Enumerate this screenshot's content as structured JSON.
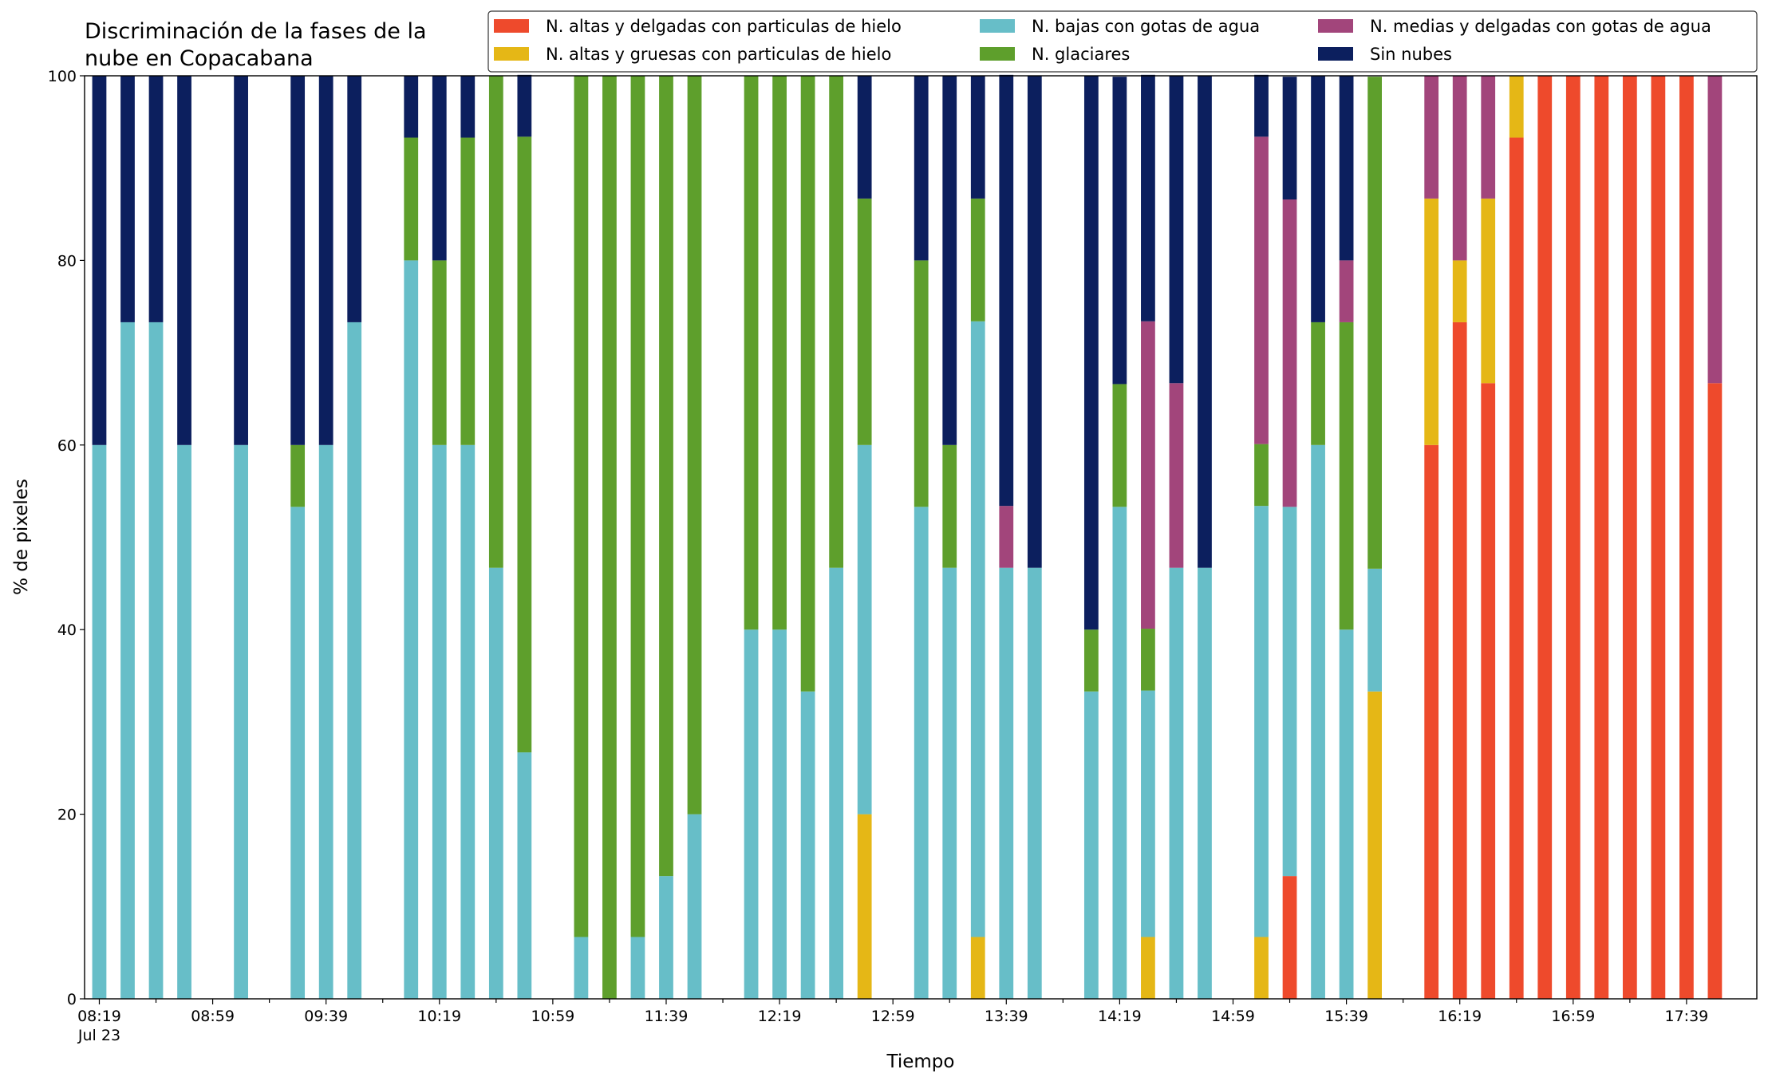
{
  "chart_data": {
    "type": "stacked_bar",
    "title": [
      "Discriminación de la fases de la",
      "nube en Copacabana"
    ],
    "x_label": "Tiempo",
    "y_label": "% de pixeles",
    "date_label": "Jul 23",
    "categories": [
      "08:19",
      null,
      null,
      null,
      "08:59",
      null,
      null,
      null,
      "09:39",
      null,
      null,
      null,
      "10:19",
      null,
      null,
      null,
      "10:59",
      null,
      null,
      null,
      "11:39",
      null,
      null,
      null,
      "12:19",
      null,
      null,
      null,
      "12:59",
      null,
      null,
      null,
      "13:39",
      null,
      null,
      null,
      "14:19",
      null,
      null,
      null,
      "14:59",
      null,
      null,
      null,
      "15:39",
      null,
      null,
      null,
      "16:19",
      null,
      null,
      null,
      "16:59",
      null,
      null,
      null,
      "17:39",
      null
    ],
    "series": [
      {
        "name": "N. altas y delgadas con particulas de hielo",
        "color": "#ee4a2c",
        "values": [
          0,
          0,
          0,
          0,
          null,
          0,
          null,
          0,
          0,
          0,
          null,
          0,
          0,
          0,
          0,
          0,
          null,
          0,
          0,
          0,
          0,
          0,
          null,
          0,
          0,
          0,
          0,
          0,
          null,
          0,
          0,
          0,
          0,
          0,
          null,
          0,
          0,
          0,
          0,
          0,
          null,
          0,
          13.3,
          0,
          0,
          0,
          null,
          60,
          73.3,
          66.7,
          93.3,
          100,
          100,
          100,
          100,
          100,
          100,
          66.7
        ]
      },
      {
        "name": "N. altas y gruesas con particulas de hielo",
        "color": "#e5b716",
        "values": [
          0,
          0,
          0,
          0,
          null,
          0,
          null,
          0,
          0,
          0,
          null,
          0,
          0,
          0,
          0,
          0,
          null,
          0,
          0,
          0,
          0,
          0,
          null,
          0,
          0,
          0,
          0,
          20,
          null,
          0,
          0,
          6.7,
          0,
          0,
          null,
          0,
          0,
          6.7,
          0,
          0,
          null,
          6.7,
          0,
          0,
          0,
          33.3,
          null,
          26.7,
          6.7,
          20,
          6.7,
          0,
          0,
          0,
          0,
          0,
          0,
          0
        ]
      },
      {
        "name": "N. bajas con gotas de agua",
        "color": "#67bec8",
        "values": [
          60,
          73.3,
          73.3,
          60,
          null,
          60,
          null,
          53.3,
          60,
          73.3,
          null,
          80,
          60,
          60,
          46.7,
          26.7,
          null,
          6.7,
          0,
          6.7,
          13.3,
          20,
          null,
          40,
          40,
          33.3,
          46.7,
          40,
          null,
          53.3,
          46.7,
          66.7,
          46.7,
          46.7,
          null,
          33.3,
          53.3,
          26.7,
          46.7,
          46.7,
          null,
          46.7,
          40,
          60,
          40,
          13.3,
          null,
          0,
          0,
          0,
          0,
          0,
          0,
          0,
          0,
          0,
          0,
          0
        ]
      },
      {
        "name": "N. glaciares",
        "color": "#5e9f2c",
        "values": [
          0,
          0,
          0,
          0,
          null,
          0,
          null,
          6.7,
          0,
          0,
          null,
          13.3,
          20,
          33.3,
          53.3,
          66.7,
          null,
          93.3,
          100,
          93.3,
          86.7,
          80,
          null,
          60,
          60,
          66.7,
          53.3,
          26.7,
          null,
          26.7,
          13.3,
          13.3,
          0,
          0,
          null,
          6.7,
          13.3,
          6.7,
          0,
          0,
          null,
          6.7,
          0,
          13.3,
          33.3,
          53.3,
          null,
          0,
          0,
          0,
          0,
          0,
          0,
          0,
          0,
          0,
          0,
          0
        ]
      },
      {
        "name": "N. medias y delgadas con gotas de agua",
        "color": "#a2457b",
        "values": [
          0,
          0,
          0,
          0,
          null,
          0,
          null,
          0,
          0,
          0,
          null,
          0,
          0,
          0,
          0,
          0,
          null,
          0,
          0,
          0,
          0,
          0,
          null,
          0,
          0,
          0,
          0,
          0,
          null,
          0,
          0,
          0,
          6.7,
          0,
          null,
          0,
          0,
          33.3,
          20,
          0,
          null,
          33.3,
          33.3,
          0,
          6.7,
          0,
          null,
          13.3,
          20,
          13.3,
          0,
          0,
          0,
          0,
          0,
          0,
          0,
          33.3
        ]
      },
      {
        "name": "Sin nubes",
        "color": "#0c1f5e",
        "values": [
          40,
          26.7,
          26.7,
          40,
          null,
          40,
          null,
          40,
          40,
          26.7,
          null,
          6.7,
          20,
          6.7,
          0,
          6.7,
          null,
          0,
          0,
          0,
          0,
          0,
          null,
          0,
          0,
          0,
          0,
          13.3,
          null,
          20,
          40,
          13.3,
          46.7,
          53.3,
          null,
          60,
          33.3,
          26.7,
          33.3,
          53.3,
          null,
          6.7,
          13.3,
          26.7,
          20,
          0,
          null,
          0,
          0,
          0,
          0,
          0,
          0,
          0,
          0,
          0,
          0,
          0
        ]
      }
    ],
    "ylim": [
      0,
      100
    ],
    "yticks": [
      0,
      20,
      40,
      60,
      80,
      100
    ],
    "legend": "upper right"
  }
}
